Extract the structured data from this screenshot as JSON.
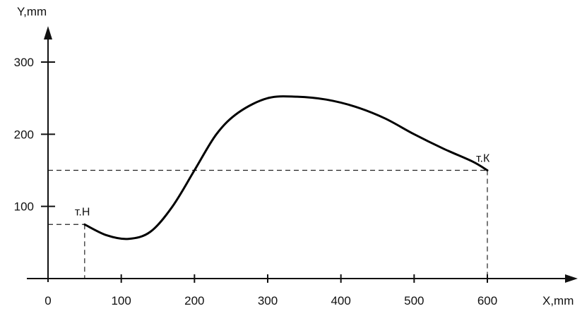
{
  "chart_data": {
    "type": "line",
    "xlabel": "X,mm",
    "ylabel": "Y,mm",
    "xlim": [
      0,
      600
    ],
    "ylim": [
      0,
      300
    ],
    "x_ticks": [
      0,
      100,
      200,
      300,
      400,
      500,
      600
    ],
    "y_ticks": [
      100,
      200,
      300
    ],
    "x_tick_labels": [
      "0",
      "100",
      "200",
      "300",
      "400",
      "500",
      "600"
    ],
    "y_tick_labels": [
      "100",
      "200",
      "300"
    ],
    "grid": false,
    "series": [
      {
        "x": [
          50,
          80,
          110,
          140,
          170,
          200,
          230,
          260,
          300,
          340,
          380,
          420,
          460,
          500,
          540,
          580,
          600
        ],
        "y": [
          75,
          60,
          55,
          65,
          100,
          150,
          200,
          230,
          250,
          252,
          248,
          238,
          222,
          200,
          180,
          162,
          150
        ]
      }
    ],
    "annotations": [
      {
        "label": "т.Н",
        "x": 50,
        "y": 75
      },
      {
        "label": "т.К",
        "x": 600,
        "y": 150
      }
    ],
    "line_color": "#000000"
  }
}
